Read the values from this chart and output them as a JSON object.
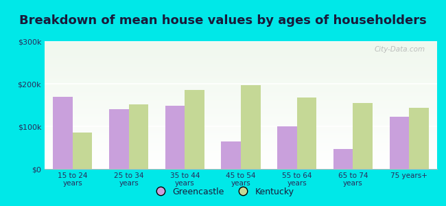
{
  "title": "Breakdown of mean house values by ages of householders",
  "categories": [
    "15 to 24\nyears",
    "25 to 34\nyears",
    "35 to 44\nyears",
    "45 to 54\nyears",
    "55 to 64\nyears",
    "65 to 74\nyears",
    "75 years+"
  ],
  "greencastle": [
    170000,
    140000,
    148000,
    65000,
    100000,
    47000,
    122000
  ],
  "kentucky": [
    85000,
    152000,
    185000,
    196000,
    168000,
    155000,
    143000
  ],
  "greencastle_color": "#c9a0dc",
  "kentucky_color": "#c5d896",
  "background_color": "#00e8e8",
  "ylim": [
    0,
    300000
  ],
  "yticks": [
    0,
    100000,
    200000,
    300000
  ],
  "ytick_labels": [
    "$0",
    "$100k",
    "$200k",
    "$300k"
  ],
  "title_fontsize": 13,
  "bar_width": 0.35,
  "legend_labels": [
    "Greencastle",
    "Kentucky"
  ],
  "watermark": "City-Data.com",
  "grad_top": "#f0f8ee",
  "grad_bottom": "#ffffff"
}
